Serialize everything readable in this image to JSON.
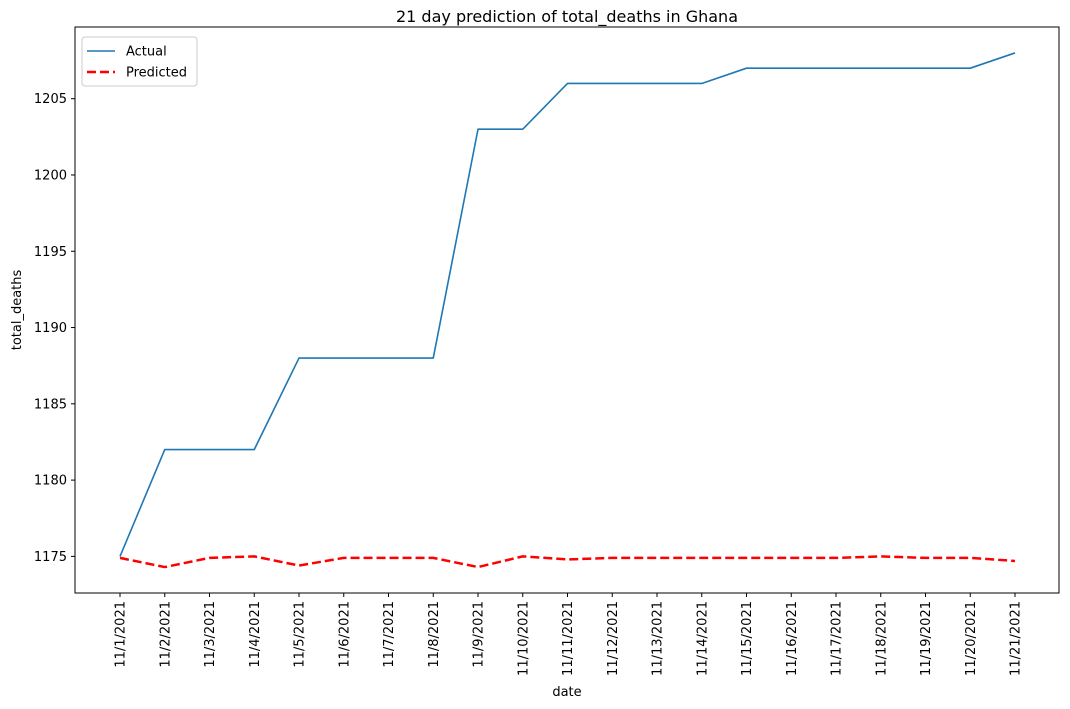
{
  "chart_data": {
    "type": "line",
    "title": "21 day prediction of total_deaths in Ghana",
    "xlabel": "date",
    "ylabel": "total_deaths",
    "x": [
      "11/1/2021",
      "11/2/2021",
      "11/3/2021",
      "11/4/2021",
      "11/5/2021",
      "11/6/2021",
      "11/7/2021",
      "11/8/2021",
      "11/9/2021",
      "11/10/2021",
      "11/11/2021",
      "11/12/2021",
      "11/13/2021",
      "11/14/2021",
      "11/15/2021",
      "11/16/2021",
      "11/17/2021",
      "11/18/2021",
      "11/19/2021",
      "11/20/2021",
      "11/21/2021"
    ],
    "series": [
      {
        "name": "Actual",
        "color": "#1f77b4",
        "style": "solid",
        "values": [
          1175,
          1182,
          1182,
          1182,
          1188,
          1188,
          1188,
          1188,
          1203,
          1203,
          1206,
          1206,
          1206,
          1206,
          1207,
          1207,
          1207,
          1207,
          1207,
          1207,
          1208
        ]
      },
      {
        "name": "Predicted",
        "color": "#ff0000",
        "style": "dashed",
        "values": [
          1174.9,
          1174.3,
          1174.9,
          1175.0,
          1174.4,
          1174.9,
          1174.9,
          1174.9,
          1174.3,
          1175.0,
          1174.8,
          1174.9,
          1174.9,
          1174.9,
          1174.9,
          1174.9,
          1174.9,
          1175.0,
          1174.9,
          1174.9,
          1174.7
        ]
      }
    ],
    "yticks": [
      1175,
      1180,
      1185,
      1190,
      1195,
      1200,
      1205
    ],
    "ylim": [
      1172.6,
      1209.7
    ],
    "grid": false,
    "legend": "top-left"
  }
}
